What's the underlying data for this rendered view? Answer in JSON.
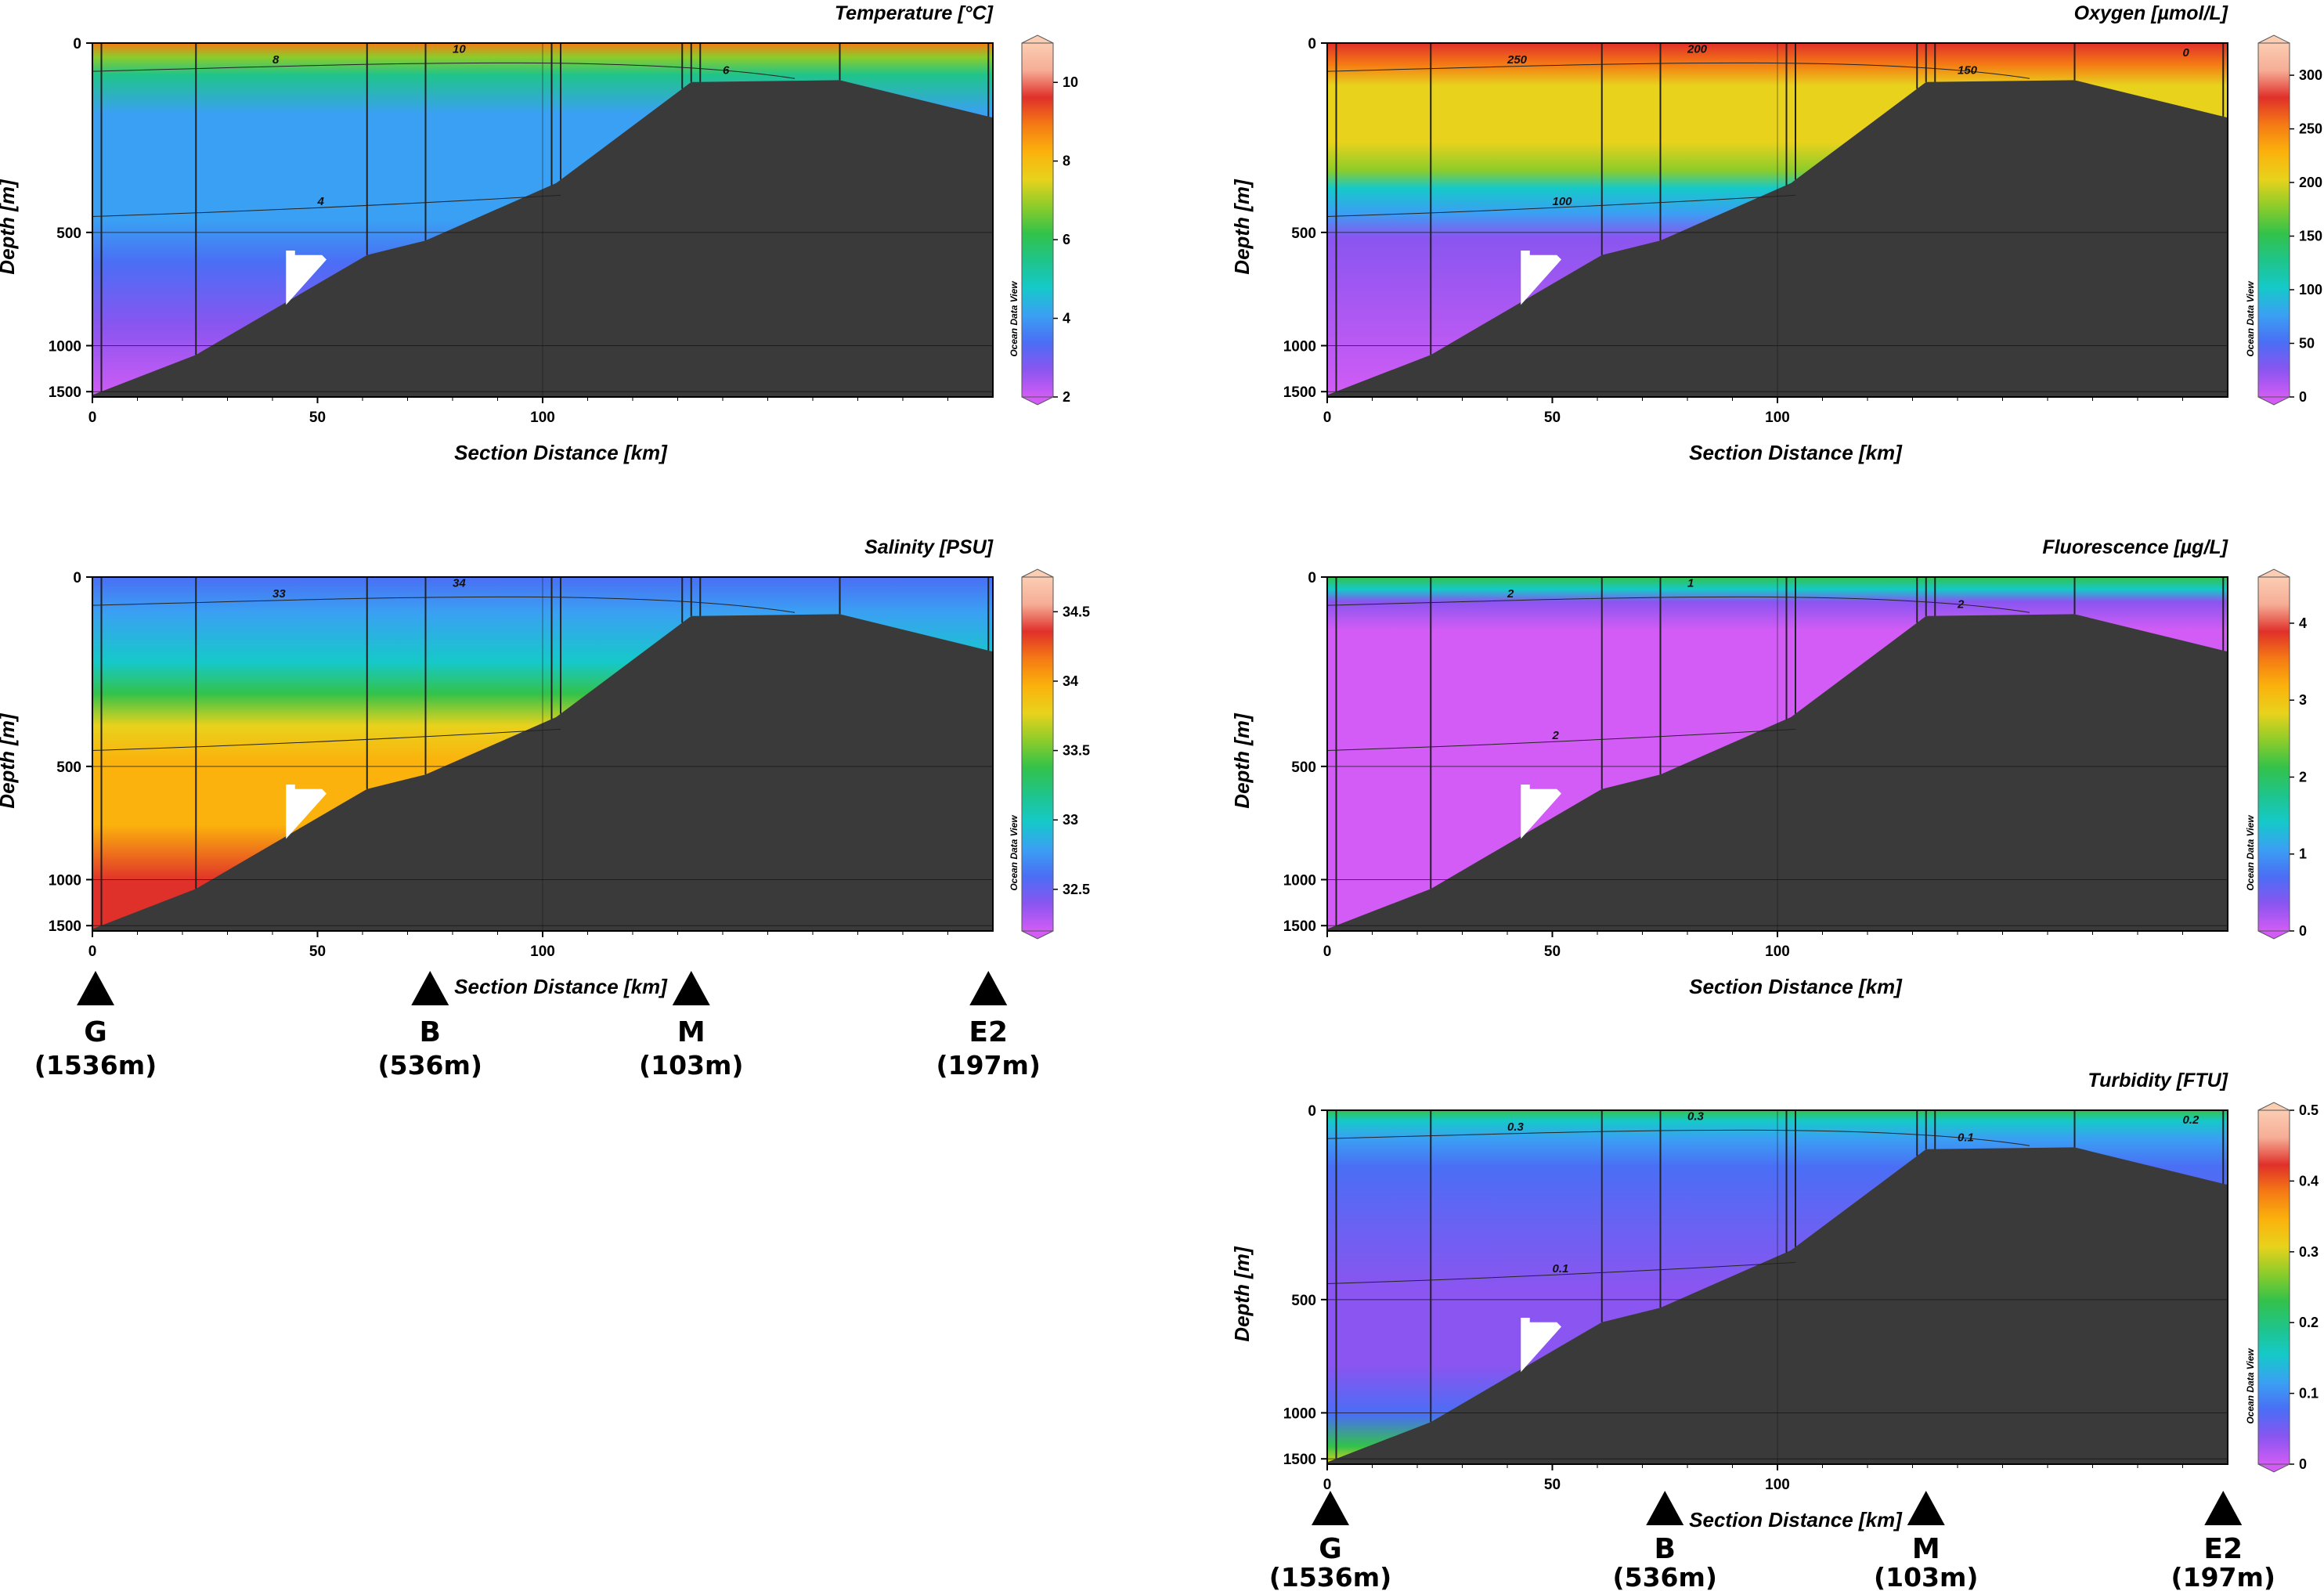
{
  "chart_data": [
    {
      "type": "heatmap",
      "title": "Temperature [°C]",
      "xlabel": "Section Distance [km]",
      "ylabel": "Depth [m]",
      "x_ticks": [
        0,
        50,
        100
      ],
      "y_ticks": [
        0,
        500,
        1000,
        1500
      ],
      "colorbar": {
        "min": 2,
        "max": 11,
        "ticks": [
          2,
          4,
          6,
          8,
          10
        ]
      },
      "contour_labels": [
        "8",
        "10",
        "6",
        "4"
      ],
      "watermark": "Ocean Data View"
    },
    {
      "type": "heatmap",
      "title": "Oxygen [µmol/L]",
      "xlabel": "Section Distance [km]",
      "ylabel": "Depth [m]",
      "x_ticks": [
        0,
        50,
        100
      ],
      "y_ticks": [
        0,
        500,
        1000,
        1500
      ],
      "colorbar": {
        "min": 0,
        "max": 330,
        "ticks": [
          0,
          50,
          100,
          150,
          200,
          250,
          300
        ]
      },
      "contour_labels": [
        "250",
        "200",
        "150",
        "100",
        "0"
      ],
      "watermark": "Ocean Data View"
    },
    {
      "type": "heatmap",
      "title": "Salinity [PSU]",
      "xlabel": "Section Distance [km]",
      "ylabel": "Depth [m]",
      "x_ticks": [
        0,
        50,
        100
      ],
      "y_ticks": [
        0,
        500,
        1000,
        1500
      ],
      "colorbar": {
        "min": 32.2,
        "max": 34.75,
        "ticks": [
          32.5,
          33,
          33.5,
          34,
          34.5
        ]
      },
      "contour_labels": [
        "33",
        "34"
      ],
      "watermark": "Ocean Data View"
    },
    {
      "type": "heatmap",
      "title": "Fluorescence [µg/L]",
      "xlabel": "Section Distance [km]",
      "ylabel": "Depth [m]",
      "x_ticks": [
        0,
        50,
        100
      ],
      "y_ticks": [
        0,
        500,
        1000,
        1500
      ],
      "colorbar": {
        "min": 0,
        "max": 4.6,
        "ticks": [
          0,
          1,
          2,
          3,
          4
        ]
      },
      "contour_labels": [
        "2",
        "1",
        "2",
        "2"
      ],
      "watermark": "Ocean Data View"
    },
    {
      "type": "heatmap",
      "title": "Turbidity [FTU]",
      "xlabel": "Section Distance [km]",
      "ylabel": "Depth [m]",
      "x_ticks": [
        0,
        50,
        100
      ],
      "y_ticks": [
        0,
        500,
        1000,
        1500
      ],
      "colorbar": {
        "min": 0,
        "max": 0.5,
        "ticks": [
          0,
          0.1,
          0.2,
          0.3,
          0.4,
          0.5
        ]
      },
      "contour_labels": [
        "0.3",
        "0.3",
        "0.1",
        "0.1",
        "0.2"
      ],
      "watermark": "Ocean Data View"
    }
  ],
  "stations": [
    {
      "name": "G",
      "depth": "(1536m)"
    },
    {
      "name": "B",
      "depth": "(536m)"
    },
    {
      "name": "M",
      "depth": "(103m)"
    },
    {
      "name": "E2",
      "depth": "(197m)"
    }
  ],
  "colors": {
    "seafloor": "#3a3a3a",
    "frame": "#000000",
    "scale": [
      "#d25cf5",
      "#8a55f0",
      "#4a6ef5",
      "#3aa0f3",
      "#15c9c9",
      "#1fc48a",
      "#33c24a",
      "#8ccc2a",
      "#e8d21c",
      "#fbb20c",
      "#f57a14",
      "#e0302a",
      "#f6ad96",
      "#fbcdb3"
    ]
  }
}
